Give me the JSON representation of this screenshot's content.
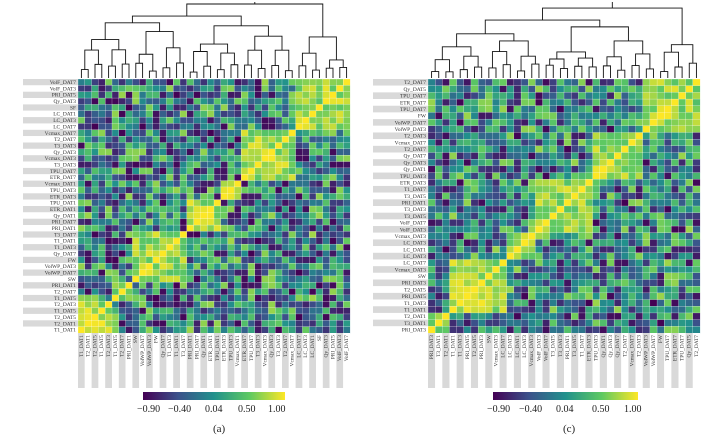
{
  "chart_data": [
    {
      "type": "heatmap",
      "panel": "(a)",
      "row_labels": [
        "VolF_DAT7",
        "VolF_DAT3",
        "PRI_DAT5",
        "Qy_DAT3",
        "SF",
        "LC_DAT1",
        "LC_DAT3",
        "LC_DAT7",
        "Vcmax_DAT7",
        "T2_DAT7",
        "T3_DAT3",
        "Qy_DAT3",
        "Vcmax_DAT3",
        "T3_DAT3",
        "TPU_DAT7",
        "ETR_DAT7",
        "Vcmax_DAT1",
        "TPU_DAT3",
        "ETR_DAT3",
        "TPU_DAT1",
        "ETR_DAT1",
        "Qy_DAT1",
        "PRI_DAT7",
        "PRI_DAT1",
        "T3_DAT7",
        "T1_DAT1",
        "T1_DAT3",
        "Qy_DAT7",
        "FW",
        "VolWP_DAT3",
        "VolWP_DAT7",
        "SW",
        "PRI_DAT1",
        "T2_DAT7",
        "T1_DAT5",
        "T2_DAT3",
        "T1_DAT5",
        "T2_DAT5",
        "T2_DAT1",
        "T1_DAT1"
      ],
      "col_labels": [
        "T1_DAT1",
        "T2_DAT1",
        "T2_DAT5",
        "T1_DAT5",
        "T2_DAT3",
        "T1_DAT5",
        "T2_DAT7",
        "PRI_DAT1",
        "SW",
        "VolWP_DAT7",
        "VolWP_DAT3",
        "FW",
        "Qy_DAT7",
        "T1_DAT3",
        "T1_DAT1",
        "T3_DAT7",
        "PRI_DAT1",
        "PRI_DAT7",
        "Qy_DAT1",
        "ETR_DAT1",
        "TPU_DAT1",
        "ETR_DAT3",
        "TPU_DAT3",
        "Vcmax_DAT1",
        "ETR_DAT7",
        "TPU_DAT7",
        "T3_DAT3",
        "Vcmax_DAT3",
        "Qy_DAT3",
        "T3_DAT3",
        "T2_DAT7",
        "Vcmax_DAT7",
        "LC_DAT7",
        "LC_DAT3",
        "LC_DAT1",
        "SF",
        "Qy_DAT3",
        "PRI_DAT5",
        "VolF_DAT3",
        "VolF_DAT7"
      ],
      "value_range": [
        -0.9,
        1.0
      ],
      "diagonal_value": 1.0
    },
    {
      "type": "heatmap",
      "panel": "(c)",
      "row_labels": [
        "T2_DAT7",
        "Qy_DAT5",
        "TPU_DAT7",
        "ETR_DAT7",
        "TPU_DAT7",
        "FW",
        "VolWP_DAT7",
        "VolWP_DAT3",
        "T2_DAT3",
        "Vcmax_DAT7",
        "T2_DAT7",
        "Qy_DAT7",
        "Qy_DAT3",
        "Qy_DAT1",
        "TPU_DAT3",
        "ETR_DAT3",
        "T1_DAT7",
        "T3_DAT5",
        "PRI_DAT1",
        "T3_DAT3",
        "T3_DAT5",
        "VolF_DAT7",
        "VolF_DAT3",
        "Vcmax_DAT3",
        "LC_DAT3",
        "LC_DAT1",
        "LC_DAT3",
        "LC_DAT7",
        "Vcmax_DAT3",
        "SW",
        "PRI_DAT3",
        "T2_DAT5",
        "PRI_DAT5",
        "T1_DAT3",
        "T1_DAT1",
        "T2_DAT1",
        "T3_DAT1",
        "PRI_DAT3"
      ],
      "col_labels": [
        "PRI_DAT3",
        "T3_DAT1",
        "T2_DAT1",
        "T1_DAT1",
        "T1_DAT3",
        "PRI_DAT5",
        "T2_DAT5",
        "PRI_DAT3",
        "SW",
        "Vcmax_DAT3",
        "LC_DAT7",
        "LC_DAT3",
        "LC_DAT1",
        "LC_DAT3",
        "Vcmax_DAT3",
        "VolF_DAT3",
        "VolF_DAT7",
        "T3_DAT5",
        "T3_DAT3",
        "PRI_DAT1",
        "T3_DAT5",
        "T1_DAT7",
        "ETR_DAT3",
        "TPU_DAT3",
        "Qy_DAT1",
        "Qy_DAT3",
        "Qy_DAT7",
        "T2_DAT7",
        "Vcmax_DAT7",
        "T2_DAT3",
        "VolWP_DAT3",
        "VolWP_DAT7",
        "FW",
        "TPU_DAT7",
        "ETR_DAT7",
        "TPU_DAT7",
        "Qy_DAT5",
        "T2_DAT7"
      ],
      "value_range": [
        -0.9,
        1.0
      ],
      "diagonal_value": 1.0
    }
  ],
  "colorbar": {
    "ticks": [
      "−0.90",
      "−0.40",
      "0.04",
      "0.50",
      "1.00"
    ],
    "colors": [
      "#440154",
      "#3b528b",
      "#21918c",
      "#5ec962",
      "#fde725"
    ]
  }
}
